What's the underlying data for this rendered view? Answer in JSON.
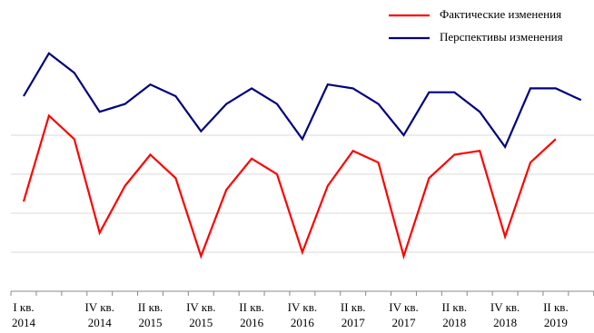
{
  "chart_data": {
    "type": "line",
    "categories": [
      "I кв.\n2014",
      null,
      null,
      "IV кв.\n2014",
      null,
      "II кв.\n2015",
      null,
      "IV кв.\n2015",
      null,
      "II кв.\n2016",
      null,
      "IV кв.\n2016",
      null,
      "II кв.\n2017",
      null,
      "IV кв.\n2017",
      null,
      "II кв.\n2018",
      null,
      "IV кв.\n2018",
      null,
      "II кв.\n2019",
      null
    ],
    "series": [
      {
        "name": "Фактические изменения",
        "color": "#ff0000",
        "values": [
          2.3,
          4.5,
          3.9,
          1.5,
          2.7,
          3.5,
          2.9,
          0.9,
          2.6,
          3.4,
          3.0,
          1.0,
          2.7,
          3.6,
          3.3,
          0.9,
          2.9,
          3.5,
          3.6,
          1.4,
          3.3,
          3.9,
          null
        ]
      },
      {
        "name": "Перспективы изменения",
        "color": "#000080",
        "values": [
          5.0,
          6.1,
          5.6,
          4.6,
          4.8,
          5.3,
          5.0,
          4.1,
          4.8,
          5.2,
          4.8,
          3.9,
          5.3,
          5.2,
          4.8,
          4.0,
          5.1,
          5.1,
          4.6,
          3.7,
          5.2,
          5.2,
          4.9
        ]
      }
    ],
    "ylim": [
      0,
      7
    ],
    "yticks": [
      0,
      1,
      2,
      3,
      4
    ],
    "grid": true,
    "legend": "top-right"
  }
}
